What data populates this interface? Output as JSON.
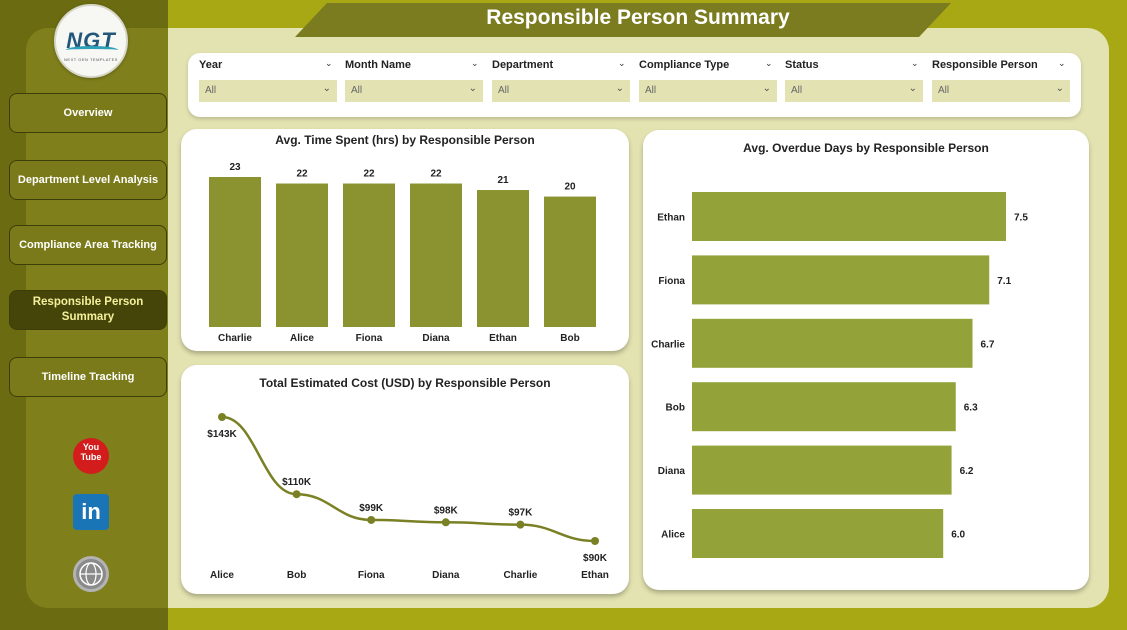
{
  "title": "Responsible Person Summary",
  "logo": {
    "text": "NGT",
    "subtext": "NEXT GEN TEMPLATES"
  },
  "nav": {
    "items": [
      {
        "label": "Overview"
      },
      {
        "label": "Department Level Analysis"
      },
      {
        "label": "Compliance Area Tracking"
      },
      {
        "label": "Responsible Person Summary"
      },
      {
        "label": "Timeline Tracking"
      }
    ]
  },
  "social": {
    "youtube_label": "You Tube",
    "linkedin_label": "in",
    "web_label": "www"
  },
  "filters": [
    {
      "label": "Year",
      "value": "All"
    },
    {
      "label": "Month Name",
      "value": "All"
    },
    {
      "label": "Department",
      "value": "All"
    },
    {
      "label": "Compliance Type",
      "value": "All"
    },
    {
      "label": "Status",
      "value": "All"
    },
    {
      "label": "Responsible Person",
      "value": "All"
    }
  ],
  "colors": {
    "bar": "#8a9330",
    "bar_light": "#93a339",
    "line": "#7a8024",
    "accent": "#a7a814"
  },
  "chart_data": [
    {
      "type": "bar",
      "title": "Avg. Time Spent (hrs) by Responsible Person",
      "categories": [
        "Charlie",
        "Alice",
        "Fiona",
        "Diana",
        "Ethan",
        "Bob"
      ],
      "values": [
        23,
        22,
        22,
        22,
        21,
        20
      ],
      "value_labels": [
        "23",
        "22",
        "22",
        "22",
        "21",
        "20"
      ]
    },
    {
      "type": "line",
      "title": "Total Estimated Cost (USD) by Responsible Person",
      "categories": [
        "Alice",
        "Bob",
        "Fiona",
        "Diana",
        "Charlie",
        "Ethan"
      ],
      "values": [
        143000,
        110000,
        99000,
        98000,
        97000,
        90000
      ],
      "value_labels": [
        "$143K",
        "$110K",
        "$99K",
        "$98K",
        "$97K",
        "$90K"
      ]
    },
    {
      "type": "bar",
      "orientation": "horizontal",
      "title": "Avg. Overdue Days by Responsible Person",
      "categories": [
        "Ethan",
        "Fiona",
        "Charlie",
        "Bob",
        "Diana",
        "Alice"
      ],
      "values": [
        7.5,
        7.1,
        6.7,
        6.3,
        6.2,
        6.0
      ],
      "value_labels": [
        "7.5",
        "7.1",
        "6.7",
        "6.3",
        "6.2",
        "6.0"
      ]
    }
  ]
}
